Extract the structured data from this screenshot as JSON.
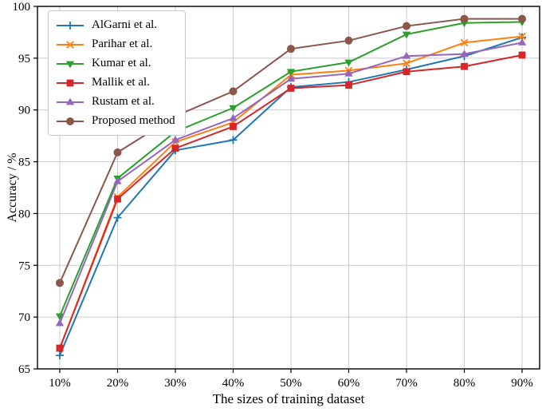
{
  "chart_data": {
    "type": "line",
    "title": "",
    "xlabel": "The sizes of training dataset",
    "ylabel": "Accuracy / %",
    "categories": [
      "10%",
      "20%",
      "30%",
      "40%",
      "50%",
      "60%",
      "70%",
      "80%",
      "90%"
    ],
    "y_ticks": [
      65,
      70,
      75,
      80,
      85,
      90,
      95,
      100
    ],
    "ylim": [
      65,
      100
    ],
    "grid": true,
    "grid_color": "#cccccc",
    "legend_position": "upper-left",
    "series": [
      {
        "name": "AlGarni et al.",
        "marker": "plus",
        "color": "#1f77b4",
        "values": [
          66.3,
          79.6,
          86.1,
          87.1,
          92.2,
          92.7,
          93.9,
          95.2,
          97.0
        ]
      },
      {
        "name": "Parihar et al.",
        "marker": "x",
        "color": "#ff7f0e",
        "values": [
          67.0,
          81.6,
          86.9,
          88.8,
          93.4,
          93.8,
          94.5,
          96.5,
          97.1
        ]
      },
      {
        "name": "Kumar et al.",
        "marker": "triangle-down",
        "color": "#2ca02c",
        "values": [
          70.1,
          83.4,
          87.9,
          90.2,
          93.7,
          94.6,
          97.3,
          98.4,
          98.5
        ]
      },
      {
        "name": "Mallik et al.",
        "marker": "square",
        "color": "#d62728",
        "values": [
          67.0,
          81.4,
          86.3,
          88.4,
          92.1,
          92.4,
          93.7,
          94.2,
          95.3
        ]
      },
      {
        "name": "Rustam et al.",
        "marker": "triangle-up",
        "color": "#9467bd",
        "values": [
          69.4,
          83.1,
          87.1,
          89.2,
          93.0,
          93.5,
          95.2,
          95.4,
          96.5
        ]
      },
      {
        "name": "Proposed method",
        "marker": "circle",
        "color": "#8c564b",
        "values": [
          73.3,
          85.9,
          89.4,
          91.8,
          95.9,
          96.7,
          98.1,
          98.8,
          98.8
        ]
      }
    ]
  }
}
